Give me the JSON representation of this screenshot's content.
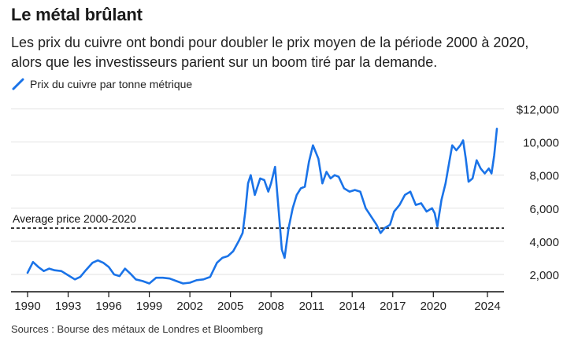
{
  "header": {
    "title": "Le métal brûlant",
    "subtitle": "Les prix du cuivre ont bondi pour doubler le prix moyen de la période 2000 à 2020, alors que les investisseurs parient sur un boom tiré par la demande."
  },
  "legend": {
    "label": "Prix du cuivre par tonne métrique",
    "color": "#1a73e8"
  },
  "source": "Sources : Bourse des métaux de Londres et Bloomberg",
  "chart_data": {
    "type": "line",
    "title": "Le métal brûlant",
    "xlabel": "",
    "ylabel": "",
    "xlim": [
      1990,
      2025.5
    ],
    "ylim": [
      1000,
      12500
    ],
    "x_ticks": [
      "1990",
      "1993",
      "1996",
      "1999",
      "2002",
      "2005",
      "2008",
      "2011",
      "2014",
      "2017",
      "2020",
      "2024"
    ],
    "y_ticks": [
      "$12,000",
      "10,000",
      "8,000",
      "6,000",
      "4,000",
      "2,000"
    ],
    "y_tick_values": [
      12000,
      10000,
      8000,
      6000,
      4000,
      2000
    ],
    "grid": "horizontal",
    "legend_position": "top-left",
    "annotation": {
      "label": "Average price 2000-2020",
      "value": 4800,
      "style": "dashed"
    },
    "series": [
      {
        "name": "Prix du cuivre par tonne métrique",
        "color": "#1a73e8",
        "x": [
          1990.0,
          1990.4,
          1990.8,
          1991.2,
          1991.6,
          1992.0,
          1992.5,
          1993.0,
          1993.5,
          1993.9,
          1994.3,
          1994.8,
          1995.2,
          1995.6,
          1996.0,
          1996.4,
          1996.8,
          1997.2,
          1997.6,
          1998.0,
          1998.5,
          1999.0,
          1999.5,
          2000.0,
          2000.5,
          2001.0,
          2001.5,
          2002.0,
          2002.5,
          2003.0,
          2003.5,
          2004.0,
          2004.4,
          2004.8,
          2005.2,
          2005.6,
          2005.9,
          2006.1,
          2006.3,
          2006.5,
          2006.8,
          2007.0,
          2007.2,
          2007.5,
          2007.8,
          2008.0,
          2008.3,
          2008.6,
          2008.8,
          2009.0,
          2009.3,
          2009.6,
          2009.9,
          2010.2,
          2010.5,
          2010.8,
          2011.1,
          2011.5,
          2011.8,
          2012.1,
          2012.4,
          2012.7,
          2013.0,
          2013.4,
          2013.8,
          2014.2,
          2014.6,
          2015.0,
          2015.4,
          2015.8,
          2016.1,
          2016.4,
          2016.8,
          2017.1,
          2017.5,
          2017.9,
          2018.3,
          2018.7,
          2019.1,
          2019.5,
          2019.9,
          2020.1,
          2020.3,
          2020.6,
          2020.9,
          2021.2,
          2021.4,
          2021.7,
          2022.0,
          2022.2,
          2022.4,
          2022.6,
          2022.9,
          2023.2,
          2023.5,
          2023.8,
          2024.1,
          2024.3,
          2024.5,
          2024.7
        ],
        "y": [
          2100,
          2750,
          2450,
          2200,
          2350,
          2250,
          2200,
          1950,
          1700,
          1850,
          2250,
          2700,
          2850,
          2700,
          2450,
          2000,
          1900,
          2350,
          2050,
          1700,
          1600,
          1450,
          1800,
          1800,
          1750,
          1600,
          1450,
          1500,
          1650,
          1700,
          1850,
          2700,
          3000,
          3100,
          3400,
          4000,
          4500,
          5800,
          7500,
          8000,
          6800,
          7300,
          7800,
          7700,
          7000,
          7500,
          8500,
          5500,
          3500,
          3000,
          4800,
          6000,
          6800,
          7200,
          7300,
          8800,
          9800,
          9000,
          7500,
          8200,
          7800,
          8000,
          7900,
          7200,
          7000,
          7100,
          7000,
          6000,
          5500,
          5000,
          4500,
          4800,
          5000,
          5800,
          6200,
          6800,
          7000,
          6200,
          6300,
          5800,
          6000,
          5700,
          4900,
          6500,
          7500,
          8900,
          9800,
          9500,
          9800,
          10100,
          9000,
          7600,
          7800,
          8900,
          8400,
          8100,
          8400,
          8100,
          9200,
          10800
        ]
      }
    ]
  }
}
